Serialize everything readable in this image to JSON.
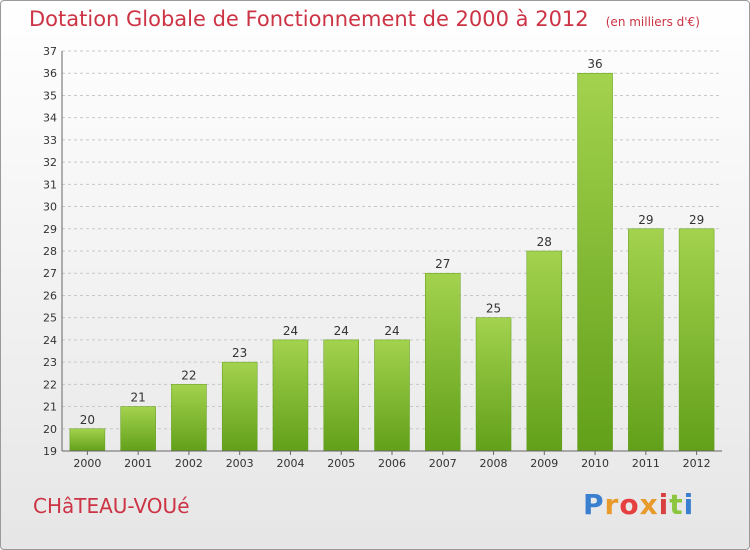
{
  "header": {
    "title": "Dotation Globale de Fonctionnement de 2000 à 2012",
    "subtitle": "(en milliers d'€)"
  },
  "footer": {
    "commune": "CHâTEAU-VOUé",
    "brand_logo": "Proxiti"
  },
  "colors": {
    "title": "#cc3344",
    "bar_light": "#a3d24e",
    "bar_dark": "#62a01a",
    "gridline": "#c8c8c8",
    "axis_text": "#333333",
    "logo_letters": [
      "#3b7fd0",
      "#e89a2a",
      "#e63f3f",
      "#e89a2a",
      "#d94040",
      "#8cc63f",
      "#3b7fd0"
    ]
  },
  "chart_data": {
    "type": "bar",
    "title": "Dotation Globale de Fonctionnement de 2000 à 2012",
    "subtitle": "(en milliers d'€)",
    "xlabel": "",
    "ylabel": "",
    "categories": [
      "2000",
      "2001",
      "2002",
      "2003",
      "2004",
      "2005",
      "2006",
      "2007",
      "2008",
      "2009",
      "2010",
      "2011",
      "2012"
    ],
    "values": [
      20,
      21,
      22,
      23,
      24,
      24,
      24,
      27,
      25,
      28,
      36,
      29,
      29
    ],
    "ylim": [
      19,
      37
    ],
    "yticks": [
      19,
      20,
      21,
      22,
      23,
      24,
      25,
      26,
      27,
      28,
      29,
      30,
      31,
      32,
      33,
      34,
      35,
      36,
      37
    ],
    "grid": "dashed horizontal",
    "data_labels": true,
    "legend": "none"
  }
}
